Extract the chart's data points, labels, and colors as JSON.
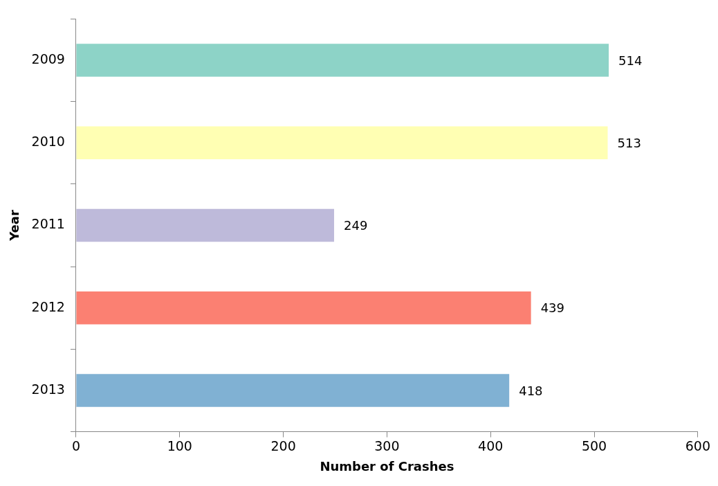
{
  "chart_data": {
    "type": "bar",
    "orientation": "horizontal",
    "xlabel": "Number of Crashes",
    "ylabel": "Year",
    "categories": [
      "2009",
      "2010",
      "2011",
      "2012",
      "2013"
    ],
    "values": [
      514,
      513,
      249,
      439,
      418
    ],
    "colors": [
      "#8dd3c7",
      "#ffffb3",
      "#bebada",
      "#fb8072",
      "#80b1d3"
    ],
    "xlim": [
      0,
      600
    ],
    "xticks": [
      0,
      100,
      200,
      300,
      400,
      500,
      600
    ],
    "data_labels": true,
    "grid": false
  }
}
